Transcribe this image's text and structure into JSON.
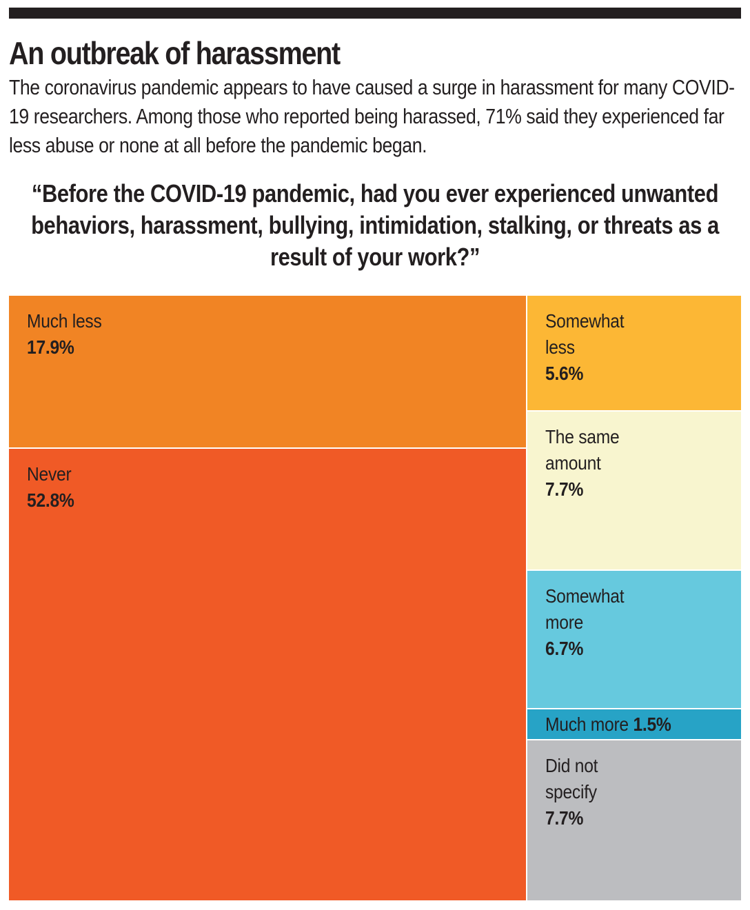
{
  "header": {
    "title": "An outbreak of harassment",
    "subtitle": "The coronavirus pandemic appears to have caused a surge in harassment for many COVID-19 researchers. Among those who reported being harassed, 71% said they experienced far less abuse or none at all before the pandemic began.",
    "question": "“Before the COVID-19 pandemic, had you ever experienced unwanted behaviors, harassment, bullying, intimidation, stalking, or threats as a result of your work?”"
  },
  "chart_data": {
    "type": "treemap",
    "title": "An outbreak of harassment",
    "subtitle": "“Before the COVID-19 pandemic, had you ever experienced unwanted behaviors, harassment, bullying, intimidation, stalking, or threats as a result of your work?”",
    "unit": "%",
    "groups": [
      {
        "column": "left",
        "items": [
          {
            "label": "Much less",
            "value": 17.9,
            "display": "17.9%",
            "color": "#f18424"
          },
          {
            "label": "Never",
            "value": 52.8,
            "display": "52.8%",
            "color": "#f05a26"
          }
        ]
      },
      {
        "column": "right",
        "items": [
          {
            "label": "Somewhat less",
            "value": 5.6,
            "display": "5.6%",
            "color": "#fcb735"
          },
          {
            "label": "The same amount",
            "value": 7.7,
            "display": "7.7%",
            "color": "#f8f5cf"
          },
          {
            "label": "Somewhat more",
            "value": 6.7,
            "display": "6.7%",
            "color": "#66c9de"
          },
          {
            "label": "Much more",
            "value": 1.5,
            "display": "1.5%",
            "color": "#27a3c6"
          },
          {
            "label": "Did not specify",
            "value": 7.7,
            "display": "7.7%",
            "color": "#bcbdc0"
          }
        ]
      }
    ],
    "label_lines": {
      "Much less": [
        "Much less"
      ],
      "Never": [
        "Never"
      ],
      "Somewhat less": [
        "Somewhat",
        "less"
      ],
      "The same amount": [
        "The same",
        "amount"
      ],
      "Somewhat more": [
        "Somewhat",
        "more"
      ],
      "Much more": [
        "Much more"
      ],
      "Did not specify": [
        "Did not",
        "specify"
      ]
    }
  }
}
